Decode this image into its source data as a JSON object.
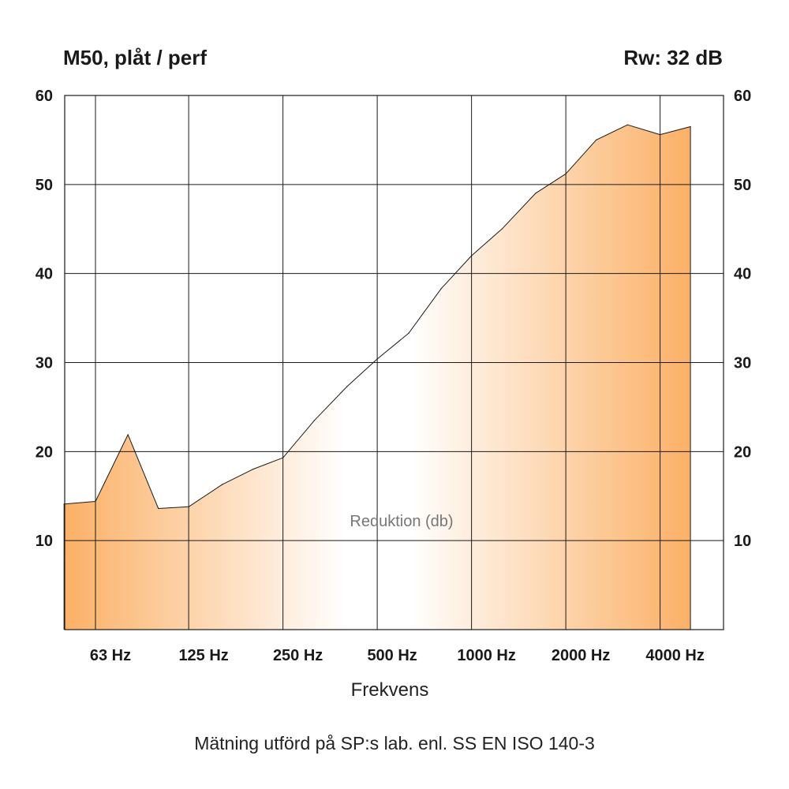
{
  "chart_data": {
    "type": "area",
    "title": "M50, plåt / perf",
    "rw_label": "Rw: 32 dB",
    "xlabel": "Frekvens",
    "annotation": "Reduktion (db)",
    "footer": "Mätning utförd på SP:s lab. enl. SS EN ISO 140-3",
    "y_ticks": [
      "10",
      "20",
      "30",
      "40",
      "50",
      "60"
    ],
    "y_tick_values": [
      10,
      20,
      30,
      40,
      50,
      60
    ],
    "ylim": [
      0,
      60
    ],
    "x_tick_labels": [
      "63 Hz",
      "125 Hz",
      "250 Hz",
      "500 Hz",
      "1000 Hz",
      "2000 Hz",
      "4000 Hz"
    ],
    "x_tick_hz": [
      63,
      125,
      250,
      500,
      1000,
      2000,
      4000
    ],
    "x_scale": "log",
    "xlim_hz": [
      40,
      6300
    ],
    "grid": true,
    "series": [
      {
        "frequencies_hz": [
          50,
          63,
          80,
          100,
          125,
          160,
          200,
          250,
          315,
          400,
          500,
          630,
          800,
          1000,
          1250,
          1600,
          2000,
          2500,
          3150,
          4000,
          5000
        ],
        "values": [
          14.1,
          14.4,
          21.9,
          13.6,
          13.8,
          16.3,
          18.0,
          19.3,
          23.5,
          27.3,
          30.4,
          33.3,
          38.3,
          42.0,
          45.0,
          49.0,
          51.2,
          55.0,
          56.7,
          55.6,
          56.5
        ]
      }
    ],
    "colors": {
      "fill_edge": "#fbb066",
      "fill_center": "#ffffff",
      "stroke": "#1a1a1a"
    }
  }
}
